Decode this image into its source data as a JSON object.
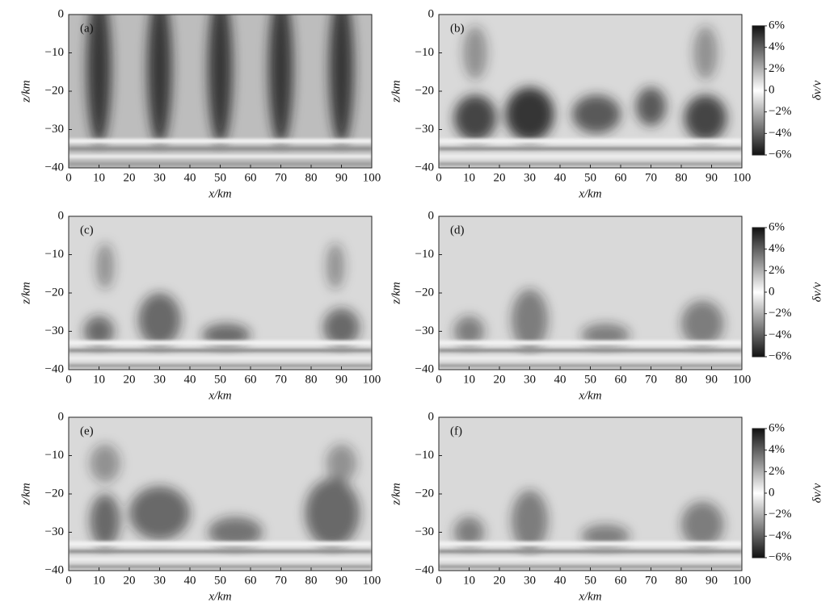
{
  "chart_data": [
    {
      "type": "heatmap",
      "label": "(a)",
      "xlabel": "x/km",
      "ylabel": "z/km",
      "xlim": [
        0,
        100
      ],
      "ylim": [
        -40,
        0
      ],
      "xticks": [
        0,
        10,
        20,
        30,
        40,
        50,
        60,
        70,
        80,
        90,
        100
      ],
      "yticks": [
        0,
        {
          "value": -10,
          "label": "−10"
        },
        {
          "value": -20,
          "label": "−20"
        },
        {
          "value": -30,
          "label": "−30"
        },
        {
          "value": -40,
          "label": "−40"
        }
      ]
    },
    {
      "type": "heatmap",
      "label": "(b)",
      "xlabel": "x/km",
      "ylabel": "z/km",
      "xlim": [
        0,
        100
      ],
      "ylim": [
        -40,
        0
      ],
      "xticks": [
        0,
        10,
        20,
        30,
        40,
        50,
        60,
        70,
        80,
        90,
        100
      ],
      "yticks": [
        0,
        {
          "value": -10,
          "label": "−10"
        },
        {
          "value": -20,
          "label": "−20"
        },
        {
          "value": -30,
          "label": "−30"
        },
        {
          "value": -40,
          "label": "−40"
        }
      ],
      "colorbar": {
        "label": "δv/v",
        "lim": [
          -6,
          6
        ],
        "ticks": [
          {
            "value": 6,
            "label": "6%"
          },
          {
            "value": 4,
            "label": "4%"
          },
          {
            "value": 2,
            "label": "2%"
          },
          0,
          {
            "value": -2,
            "label": "−2%"
          },
          {
            "value": -4,
            "label": "−4%"
          },
          {
            "value": -6,
            "label": "−6%"
          }
        ]
      }
    },
    {
      "type": "heatmap",
      "label": "(c)",
      "xlabel": "x/km",
      "ylabel": "z/km",
      "xlim": [
        0,
        100
      ],
      "ylim": [
        -40,
        0
      ],
      "xticks": [
        0,
        10,
        20,
        30,
        40,
        50,
        60,
        70,
        80,
        90,
        100
      ],
      "yticks": [
        0,
        {
          "value": -10,
          "label": "−10"
        },
        {
          "value": -20,
          "label": "−20"
        },
        {
          "value": -30,
          "label": "−30"
        },
        {
          "value": -40,
          "label": "−40"
        }
      ]
    },
    {
      "type": "heatmap",
      "label": "(d)",
      "xlabel": "x/km",
      "ylabel": "z/km",
      "xlim": [
        0,
        100
      ],
      "ylim": [
        -40,
        0
      ],
      "xticks": [
        0,
        10,
        20,
        30,
        40,
        50,
        60,
        70,
        80,
        90,
        100
      ],
      "yticks": [
        0,
        {
          "value": -10,
          "label": "−10"
        },
        {
          "value": -20,
          "label": "−20"
        },
        {
          "value": -30,
          "label": "−30"
        },
        {
          "value": -40,
          "label": "−40"
        }
      ],
      "colorbar": {
        "label": "δv/v",
        "lim": [
          -6,
          6
        ],
        "ticks": [
          {
            "value": 6,
            "label": "6%"
          },
          {
            "value": 4,
            "label": "4%"
          },
          {
            "value": 2,
            "label": "2%"
          },
          0,
          {
            "value": -2,
            "label": "−2%"
          },
          {
            "value": -4,
            "label": "−4%"
          },
          {
            "value": -6,
            "label": "−6%"
          }
        ]
      }
    },
    {
      "type": "heatmap",
      "label": "(e)",
      "xlabel": "x/km",
      "ylabel": "z/km",
      "xlim": [
        0,
        100
      ],
      "ylim": [
        -40,
        0
      ],
      "xticks": [
        0,
        10,
        20,
        30,
        40,
        50,
        60,
        70,
        80,
        90,
        100
      ],
      "yticks": [
        0,
        {
          "value": -10,
          "label": "−10"
        },
        {
          "value": -20,
          "label": "−20"
        },
        {
          "value": -30,
          "label": "−30"
        },
        {
          "value": -40,
          "label": "−40"
        }
      ]
    },
    {
      "type": "heatmap",
      "label": "(f)",
      "xlabel": "x/km",
      "ylabel": "z/km",
      "xlim": [
        0,
        100
      ],
      "ylim": [
        -40,
        0
      ],
      "xticks": [
        0,
        10,
        20,
        30,
        40,
        50,
        60,
        70,
        80,
        90,
        100
      ],
      "yticks": [
        0,
        {
          "value": -10,
          "label": "−10"
        },
        {
          "value": -20,
          "label": "−20"
        },
        {
          "value": -30,
          "label": "−30"
        },
        {
          "value": -40,
          "label": "−40"
        }
      ],
      "colorbar": {
        "label": "δv/v",
        "lim": [
          -6,
          6
        ],
        "ticks": [
          {
            "value": 6,
            "label": "6%"
          },
          {
            "value": 4,
            "label": "4%"
          },
          {
            "value": 2,
            "label": "2%"
          },
          0,
          {
            "value": -2,
            "label": "−2%"
          },
          {
            "value": -4,
            "label": "−4%"
          },
          {
            "value": -6,
            "label": "−6%"
          }
        ]
      }
    }
  ]
}
